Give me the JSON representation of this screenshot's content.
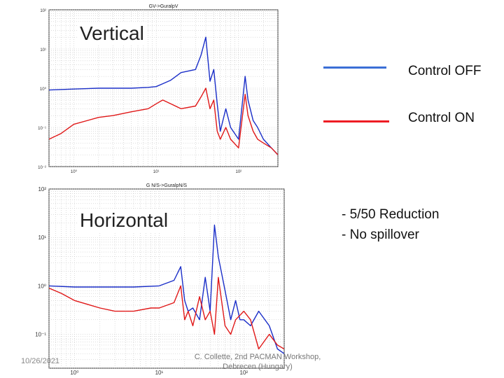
{
  "chart_data": [
    {
      "type": "line",
      "title": "GV->GuralpV",
      "overlay_title": "Vertical",
      "xscale": "log",
      "yscale": "log",
      "x_ticks": [
        "10^0",
        "10^1",
        "10^2"
      ],
      "y_ticks": [
        "10^2",
        "10^1",
        "10^0",
        "10^-1",
        "10^-2"
      ],
      "xlim": [
        0.5,
        300
      ],
      "ylim": [
        0.01,
        100
      ],
      "grid": true,
      "series": [
        {
          "name": "Control OFF",
          "color": "#1a2ec8",
          "x": [
            0.5,
            1,
            2,
            5,
            8,
            10,
            12,
            15,
            20,
            30,
            35,
            40,
            45,
            50,
            55,
            60,
            70,
            80,
            100,
            120,
            130,
            150,
            170,
            200,
            250,
            300
          ],
          "y": [
            0.9,
            0.95,
            1.0,
            1.0,
            1.05,
            1.1,
            1.3,
            1.6,
            2.5,
            3.0,
            7.0,
            20.0,
            1.5,
            3.0,
            0.4,
            0.08,
            0.3,
            0.1,
            0.05,
            2.0,
            0.5,
            0.15,
            0.1,
            0.05,
            0.03,
            0.02
          ]
        },
        {
          "name": "Control ON",
          "color": "#e01818",
          "x": [
            0.5,
            0.7,
            1,
            2,
            3,
            5,
            8,
            10,
            12,
            15,
            20,
            30,
            35,
            40,
            45,
            50,
            55,
            60,
            70,
            80,
            100,
            120,
            130,
            150,
            170,
            200,
            250,
            300
          ],
          "y": [
            0.05,
            0.07,
            0.12,
            0.18,
            0.2,
            0.25,
            0.3,
            0.4,
            0.5,
            0.4,
            0.3,
            0.35,
            0.6,
            1.0,
            0.3,
            0.5,
            0.08,
            0.05,
            0.1,
            0.05,
            0.03,
            0.7,
            0.2,
            0.08,
            0.05,
            0.04,
            0.03,
            0.02
          ]
        }
      ]
    },
    {
      "type": "line",
      "title": "G N/S->GuralpN/S",
      "overlay_title": "Horizontal",
      "xscale": "log",
      "yscale": "log",
      "x_ticks": [
        "10^0",
        "10^1",
        "10^2"
      ],
      "y_ticks": [
        "10^2",
        "10^1",
        "10^0",
        "10^-1"
      ],
      "xlim": [
        0.5,
        300
      ],
      "ylim": [
        0.02,
        100
      ],
      "grid": true,
      "series": [
        {
          "name": "Control OFF",
          "color": "#1a2ec8",
          "x": [
            0.5,
            1,
            2,
            5,
            10,
            15,
            18,
            20,
            22,
            25,
            30,
            35,
            40,
            45,
            50,
            60,
            70,
            80,
            90,
            100,
            120,
            150,
            200,
            250,
            300
          ],
          "y": [
            1.0,
            0.95,
            0.95,
            0.95,
            1.0,
            1.3,
            2.5,
            0.5,
            0.3,
            0.35,
            0.2,
            1.5,
            0.3,
            18.0,
            4.0,
            0.8,
            0.2,
            0.5,
            0.2,
            0.2,
            0.15,
            0.3,
            0.15,
            0.05,
            0.04
          ]
        },
        {
          "name": "Control ON",
          "color": "#e01818",
          "x": [
            0.5,
            0.7,
            1,
            2,
            3,
            5,
            8,
            10,
            15,
            18,
            20,
            22,
            25,
            30,
            35,
            40,
            45,
            50,
            60,
            70,
            80,
            100,
            120,
            150,
            200,
            250,
            300
          ],
          "y": [
            0.9,
            0.7,
            0.5,
            0.35,
            0.3,
            0.3,
            0.35,
            0.35,
            0.45,
            1.0,
            0.2,
            0.3,
            0.15,
            0.6,
            0.2,
            0.3,
            0.1,
            1.5,
            0.15,
            0.1,
            0.2,
            0.3,
            0.2,
            0.05,
            0.1,
            0.06,
            0.05
          ]
        }
      ]
    }
  ],
  "legend": {
    "off_label": "Control OFF",
    "on_label": "Control ON",
    "off_color": "#3b6fd6",
    "on_color": "#ee1c24"
  },
  "notes": {
    "line1": "- 5/50 Reduction",
    "line2": "-   No spillover"
  },
  "footer": {
    "date": "10/26/2021",
    "credit": "C. Collette, 2nd PACMAN Workshop, Debrecen (Hungary)"
  }
}
